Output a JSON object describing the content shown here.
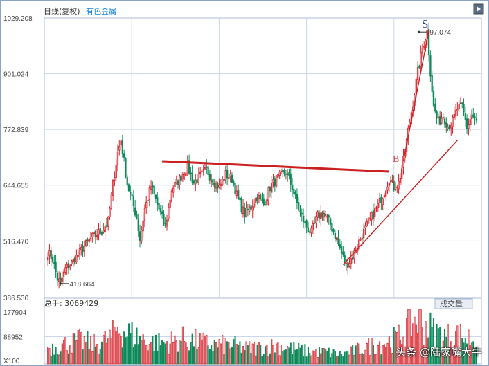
{
  "header": {
    "title": "日线(复权)",
    "subtitle": "有色金属"
  },
  "volume_header": {
    "label": "总手: 3069429",
    "badge": "成交量"
  },
  "watermark": "头条 @陆家嘴大牛",
  "annotations": {
    "s_label": "S",
    "b_label": "B",
    "high_value": "997.074",
    "low_value": "418.664"
  },
  "colors": {
    "up": "#d4232b",
    "down": "#0e8a5a",
    "trendline": "#cc1f1f",
    "grid": "#c9d7ea",
    "axis_text": "#444444"
  },
  "chart_data": [
    {
      "type": "candlestick",
      "title": "日线(复权)",
      "subtitle": "有色金属",
      "y_ticks": [
        "1029.208",
        "901.024",
        "772.839",
        "644.655",
        "516.470",
        "386.530"
      ],
      "ylim": [
        386.53,
        1029.208
      ],
      "grid": true,
      "close_path": [
        [
          0,
          490
        ],
        [
          3,
          475
        ],
        [
          6,
          430
        ],
        [
          8,
          418.664
        ],
        [
          11,
          452
        ],
        [
          16,
          470
        ],
        [
          22,
          500
        ],
        [
          28,
          525
        ],
        [
          34,
          540
        ],
        [
          38,
          562
        ],
        [
          41,
          648
        ],
        [
          44,
          720
        ],
        [
          46,
          748
        ],
        [
          48,
          700
        ],
        [
          50,
          648
        ],
        [
          53,
          610
        ],
        [
          56,
          570
        ],
        [
          58,
          520
        ],
        [
          61,
          590
        ],
        [
          65,
          642
        ],
        [
          70,
          590
        ],
        [
          74,
          548
        ],
        [
          78,
          635
        ],
        [
          83,
          660
        ],
        [
          88,
          688
        ],
        [
          92,
          650
        ],
        [
          96,
          665
        ],
        [
          100,
          680
        ],
        [
          104,
          655
        ],
        [
          108,
          640
        ],
        [
          112,
          670
        ],
        [
          116,
          660
        ],
        [
          120,
          610
        ],
        [
          124,
          578
        ],
        [
          128,
          595
        ],
        [
          132,
          620
        ],
        [
          136,
          600
        ],
        [
          140,
          640
        ],
        [
          145,
          662
        ],
        [
          150,
          675
        ],
        [
          154,
          640
        ],
        [
          158,
          590
        ],
        [
          162,
          555
        ],
        [
          166,
          535
        ],
        [
          170,
          575
        ],
        [
          174,
          580
        ],
        [
          178,
          555
        ],
        [
          182,
          520
        ],
        [
          185,
          488
        ],
        [
          188,
          460
        ],
        [
          192,
          480
        ],
        [
          196,
          515
        ],
        [
          200,
          545
        ],
        [
          204,
          572
        ],
        [
          208,
          598
        ],
        [
          212,
          630
        ],
        [
          215,
          660
        ],
        [
          218,
          640
        ],
        [
          221,
          650
        ],
        [
          224,
          700
        ],
        [
          227,
          770
        ],
        [
          230,
          835
        ],
        [
          233,
          905
        ],
        [
          236,
          960
        ],
        [
          239,
          997.074
        ],
        [
          241,
          905
        ],
        [
          243,
          825
        ],
        [
          246,
          790
        ],
        [
          249,
          805
        ],
        [
          252,
          780
        ],
        [
          255,
          792
        ],
        [
          258,
          820
        ],
        [
          261,
          825
        ],
        [
          264,
          778
        ],
        [
          267,
          805
        ],
        [
          270,
          790
        ]
      ],
      "high_label": "997.074",
      "low_label": "418.664",
      "neckline": [
        [
          72,
          700
        ],
        [
          215,
          676
        ]
      ],
      "support_line": [
        [
          186,
          462
        ],
        [
          258,
          748
        ]
      ]
    },
    {
      "type": "bar",
      "title": "成交量",
      "label": "总手: 3069429",
      "y_ticks": [
        "177904",
        "88952",
        "X100"
      ],
      "ylim": [
        0,
        177904
      ],
      "volume_path": [
        [
          0,
          52000
        ],
        [
          10,
          62000
        ],
        [
          20,
          75000
        ],
        [
          30,
          62000
        ],
        [
          40,
          85000
        ],
        [
          44,
          120000
        ],
        [
          48,
          105000
        ],
        [
          55,
          90000
        ],
        [
          65,
          70000
        ],
        [
          75,
          68000
        ],
        [
          85,
          80000
        ],
        [
          95,
          72000
        ],
        [
          105,
          60000
        ],
        [
          115,
          62000
        ],
        [
          125,
          50000
        ],
        [
          135,
          52000
        ],
        [
          145,
          60000
        ],
        [
          155,
          48000
        ],
        [
          165,
          40000
        ],
        [
          175,
          38000
        ],
        [
          185,
          30000
        ],
        [
          195,
          45000
        ],
        [
          205,
          62000
        ],
        [
          215,
          72000
        ],
        [
          222,
          88000
        ],
        [
          228,
          135000
        ],
        [
          233,
          145000
        ],
        [
          238,
          125000
        ],
        [
          243,
          105000
        ],
        [
          250,
          88000
        ],
        [
          258,
          92000
        ],
        [
          266,
          82000
        ],
        [
          271,
          80000
        ]
      ]
    }
  ]
}
